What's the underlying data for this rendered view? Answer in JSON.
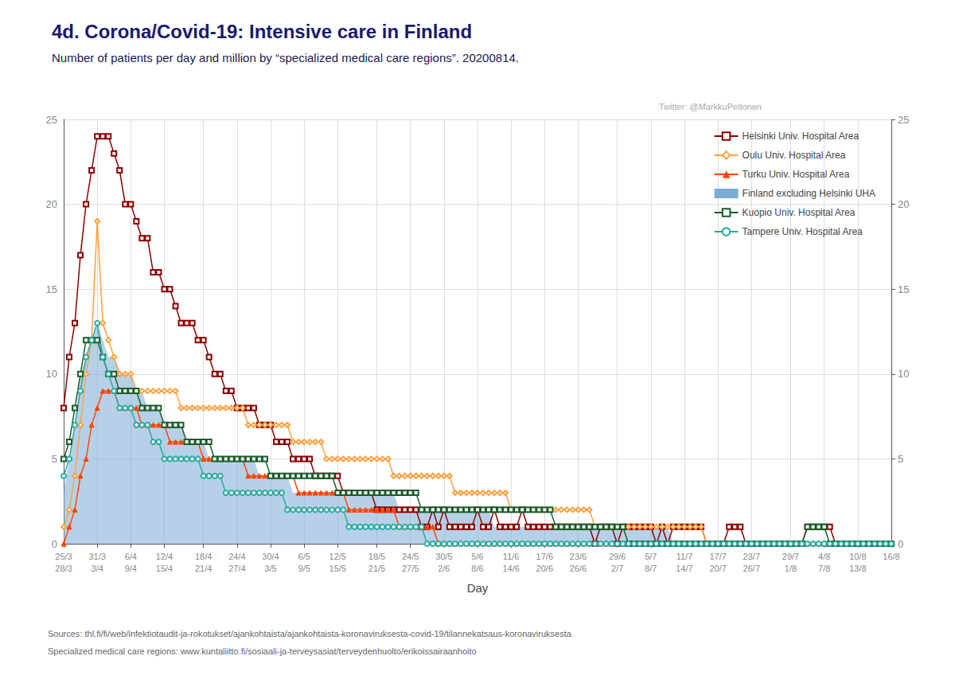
{
  "chart_data": {
    "type": "line",
    "title": "4d. Corona/Covid-19: Intensive care in Finland",
    "subtitle": "Number of patients per day and million by “specialized medical care regions”. 20200814.",
    "annotations": [
      "Twitter: @MarkkuPeltonen",
      "Sources: thl.fi/fi/web/infektiotaudit-ja-rokotukset/ajankohtaista/ajankohtaista-koronaviruksesta-covid-19/tilannekatsaus-koronaviruksesta",
      "Specialized medical care regions: www.kuntaliitto.fi/sosiaali-ja-terveysasiat/terveydenhuolto/erikoissairaanhoito"
    ],
    "xlabel": "Day",
    "categories": [
      "25/3\n28/3",
      null,
      null,
      null,
      null,
      null,
      "31/3\n3/4",
      null,
      null,
      null,
      null,
      null,
      "6/4\n9/4",
      null,
      null,
      null,
      null,
      null,
      "12/4\n15/4",
      null,
      null,
      null,
      null,
      null,
      null,
      "18/4\n21/4",
      null,
      null,
      null,
      null,
      null,
      "24/4\n27/4",
      null,
      null,
      null,
      null,
      null,
      "30/4\n3/5",
      null,
      null,
      null,
      null,
      null,
      "6/5\n9/5",
      null,
      null,
      null,
      null,
      null,
      "12/5\n15/5",
      null,
      null,
      null,
      null,
      null,
      null,
      "18/5\n21/5",
      null,
      null,
      null,
      null,
      null,
      "24/5\n27/5",
      null,
      null,
      null,
      null,
      null,
      "30/5\n2/6",
      null,
      null,
      null,
      null,
      null,
      "5/6\n8/6",
      null,
      null,
      null,
      null,
      null,
      "11/6\n14/6",
      null,
      null,
      null,
      null,
      null,
      "17/6\n20/6",
      null,
      null,
      null,
      null,
      null,
      "23/6\n26/6",
      null,
      null,
      null,
      null,
      null,
      null,
      "29/6\n2/7",
      null,
      null,
      null,
      null,
      null,
      "5/7\n8/7",
      null,
      null,
      null,
      null,
      null,
      "11/7\n14/7",
      null,
      null,
      null,
      null,
      null,
      "17/7\n20/7",
      null,
      null,
      null,
      null,
      null,
      "23/7\n26/7",
      null,
      null,
      null,
      null,
      null,
      null,
      "29/7\n1/8",
      null,
      null,
      null,
      null,
      null,
      "4/8\n7/8",
      null,
      null,
      null,
      null,
      null,
      "10/8\n13/8",
      null,
      null,
      null,
      null,
      null,
      "16/8"
    ],
    "ylim": [
      0,
      25
    ],
    "yticks": [
      0,
      5,
      10,
      15,
      20,
      25
    ],
    "y2lim": [
      0,
      25
    ],
    "y2ticks": [
      0,
      5,
      10,
      15,
      20,
      25
    ],
    "grid": true,
    "legend": "upper right",
    "series": [
      {
        "name": "Helsinki Univ. Hospital Area",
        "type": "line",
        "color": "#8B0000",
        "marker": "open square",
        "values": [
          8,
          11,
          13,
          17,
          20,
          22,
          24,
          24,
          24,
          23,
          22,
          20,
          20,
          19,
          18,
          18,
          16,
          16,
          15,
          15,
          14,
          13,
          13,
          13,
          12,
          12,
          11,
          10,
          10,
          9,
          9,
          8,
          8,
          8,
          8,
          7,
          7,
          7,
          6,
          6,
          6,
          5,
          5,
          5,
          5,
          4,
          4,
          4,
          4,
          4,
          3,
          3,
          3,
          3,
          3,
          3,
          2,
          2,
          2,
          2,
          2,
          2,
          2,
          2,
          1,
          1,
          2,
          1,
          2,
          1,
          1,
          1,
          1,
          1,
          2,
          1,
          1,
          2,
          1,
          1,
          1,
          1,
          2,
          1,
          1,
          1,
          1,
          1,
          1,
          1,
          1,
          1,
          1,
          1,
          1,
          0,
          1,
          1,
          1,
          0,
          1,
          1,
          1,
          1,
          1,
          1,
          0,
          1,
          0,
          1,
          1,
          1,
          1,
          1,
          1,
          0,
          0,
          0,
          0,
          1,
          1,
          1,
          0,
          0,
          0,
          0,
          0,
          0,
          0,
          0,
          0,
          0,
          0,
          1,
          1,
          1,
          1,
          1,
          0,
          0,
          0,
          0,
          0,
          0,
          0,
          0,
          0,
          0,
          0
        ]
      },
      {
        "name": "Oulu Univ. Hospital Area",
        "type": "line",
        "color": "#FFA040",
        "marker": "open diamond",
        "values": [
          1,
          2,
          4,
          7,
          10,
          12,
          19,
          13,
          12,
          11,
          10,
          10,
          10,
          9,
          9,
          9,
          9,
          9,
          9,
          9,
          9,
          8,
          8,
          8,
          8,
          8,
          8,
          8,
          8,
          8,
          8,
          8,
          8,
          7,
          7,
          7,
          7,
          7,
          7,
          7,
          7,
          6,
          6,
          6,
          6,
          6,
          6,
          5,
          5,
          5,
          5,
          5,
          5,
          5,
          5,
          5,
          5,
          5,
          5,
          4,
          4,
          4,
          4,
          4,
          4,
          4,
          4,
          4,
          4,
          4,
          3,
          3,
          3,
          3,
          3,
          3,
          3,
          3,
          3,
          3,
          2,
          2,
          2,
          2,
          2,
          2,
          2,
          2,
          2,
          2,
          2,
          2,
          2,
          2,
          2,
          1,
          1,
          1,
          1,
          1,
          1,
          1,
          1,
          1,
          1,
          1,
          1,
          1,
          1,
          1,
          1,
          1,
          1,
          1,
          1,
          0,
          0,
          0,
          0,
          0,
          0,
          0,
          0,
          0,
          0,
          0,
          0,
          0,
          0,
          0,
          0,
          0,
          0,
          0,
          0,
          0,
          0,
          0,
          0,
          0,
          0,
          0,
          0,
          0,
          0,
          0,
          0,
          0,
          0
        ]
      },
      {
        "name": "Turku Univ. Hospital Area",
        "type": "line",
        "color": "#FF4500",
        "marker": "triangle",
        "values": [
          0,
          1,
          2,
          4,
          5,
          7,
          8,
          9,
          9,
          9,
          8,
          8,
          8,
          8,
          7,
          7,
          7,
          7,
          7,
          6,
          6,
          6,
          6,
          6,
          6,
          5,
          5,
          5,
          5,
          5,
          5,
          5,
          5,
          4,
          4,
          4,
          4,
          4,
          4,
          4,
          4,
          4,
          3,
          3,
          3,
          3,
          3,
          3,
          3,
          3,
          3,
          2,
          2,
          2,
          2,
          2,
          2,
          2,
          2,
          2,
          1,
          1,
          1,
          1,
          1,
          1,
          1,
          0,
          0,
          0,
          0,
          0,
          0,
          0,
          0,
          0,
          0,
          0,
          0,
          0,
          0,
          0,
          0,
          0,
          0,
          0,
          0,
          0,
          0,
          0,
          0,
          0,
          0,
          0,
          0,
          0,
          0,
          0,
          0,
          0,
          0,
          0,
          0,
          0,
          0,
          0,
          0,
          0,
          0,
          0,
          0,
          0,
          0,
          0,
          0,
          0,
          0,
          0,
          0,
          0,
          0,
          0,
          0,
          0,
          0,
          0,
          0,
          0,
          0,
          0,
          0,
          0,
          0,
          0,
          0,
          0,
          0,
          0,
          0,
          0,
          0,
          0,
          0,
          0,
          0,
          0,
          0,
          0,
          0
        ]
      },
      {
        "name": "Finland excluding Helsinki UHA",
        "type": "area",
        "color": "#7aacd4",
        "values": [
          3,
          5,
          7,
          10,
          11,
          12,
          13,
          12,
          11,
          11,
          10,
          10,
          10,
          9,
          9,
          8,
          8,
          8,
          7,
          7,
          7,
          7,
          6,
          6,
          6,
          6,
          5,
          5,
          5,
          5,
          5,
          5,
          5,
          5,
          5,
          4,
          4,
          4,
          4,
          4,
          4,
          3,
          3,
          3,
          3,
          3,
          3,
          3,
          3,
          3,
          3,
          3,
          3,
          3,
          3,
          3,
          3,
          3,
          3,
          3,
          2,
          2,
          2,
          2,
          2,
          2,
          2,
          2,
          2,
          2,
          2,
          2,
          2,
          2,
          2,
          2,
          2,
          1,
          1,
          1,
          1,
          1,
          1,
          1,
          1,
          1,
          1,
          1,
          1,
          1,
          1,
          1,
          1,
          1,
          1,
          1,
          1,
          1,
          1,
          1,
          1,
          1,
          1,
          1,
          1,
          1,
          1,
          1,
          1,
          0,
          0,
          0,
          0,
          0,
          0,
          0,
          0,
          0,
          0,
          0,
          0,
          0,
          0,
          0,
          0,
          0,
          0,
          0,
          0,
          0,
          0,
          0,
          0,
          0,
          0,
          0,
          0,
          0,
          0,
          0,
          0,
          0,
          0,
          0,
          0,
          0,
          0,
          0,
          0
        ]
      },
      {
        "name": "Kuopio Univ. Hospital Area",
        "type": "line",
        "color": "#1a5c2a",
        "marker": "open square",
        "values": [
          5,
          6,
          8,
          10,
          12,
          12,
          12,
          11,
          10,
          10,
          9,
          9,
          9,
          9,
          8,
          8,
          8,
          8,
          7,
          7,
          7,
          7,
          6,
          6,
          6,
          6,
          6,
          5,
          5,
          5,
          5,
          5,
          5,
          5,
          5,
          5,
          5,
          4,
          4,
          4,
          4,
          4,
          4,
          4,
          4,
          4,
          4,
          4,
          4,
          3,
          3,
          3,
          3,
          3,
          3,
          3,
          3,
          3,
          3,
          3,
          3,
          3,
          3,
          3,
          2,
          2,
          2,
          2,
          2,
          2,
          2,
          2,
          2,
          2,
          2,
          2,
          2,
          2,
          2,
          2,
          2,
          2,
          2,
          2,
          2,
          2,
          2,
          2,
          1,
          1,
          1,
          1,
          1,
          1,
          1,
          1,
          1,
          1,
          1,
          1,
          1,
          0,
          0,
          0,
          0,
          0,
          0,
          0,
          0,
          0,
          0,
          0,
          0,
          0,
          0,
          0,
          0,
          0,
          0,
          0,
          0,
          0,
          0,
          0,
          0,
          0,
          0,
          0,
          0,
          0,
          0,
          0,
          0,
          1,
          1,
          1,
          1,
          0,
          0,
          0,
          0,
          0,
          0,
          0,
          0,
          0,
          0,
          0,
          0
        ]
      },
      {
        "name": "Tampere Univ. Hospital Area",
        "type": "line",
        "color": "#2aaaa0",
        "marker": "open circle",
        "values": [
          4,
          5,
          7,
          9,
          11,
          12,
          13,
          11,
          10,
          9,
          8,
          8,
          8,
          7,
          7,
          7,
          6,
          6,
          5,
          5,
          5,
          5,
          5,
          5,
          5,
          4,
          4,
          4,
          4,
          3,
          3,
          3,
          3,
          3,
          3,
          3,
          3,
          3,
          3,
          3,
          2,
          2,
          2,
          2,
          2,
          2,
          2,
          2,
          2,
          2,
          2,
          1,
          1,
          1,
          1,
          1,
          1,
          1,
          1,
          1,
          1,
          1,
          1,
          1,
          1,
          0,
          0,
          0,
          0,
          0,
          0,
          0,
          0,
          0,
          0,
          0,
          0,
          0,
          0,
          0,
          0,
          0,
          0,
          0,
          0,
          0,
          0,
          0,
          0,
          0,
          0,
          0,
          0,
          0,
          0,
          0,
          0,
          0,
          0,
          0,
          0,
          0,
          0,
          0,
          0,
          0,
          0,
          0,
          0,
          0,
          0,
          0,
          0,
          0,
          0,
          0,
          0,
          0,
          0,
          0,
          0,
          0,
          0,
          0,
          0,
          0,
          0,
          0,
          0,
          0,
          0,
          0,
          0,
          0,
          0,
          0,
          0,
          0,
          0,
          0,
          0,
          0,
          0,
          0,
          0,
          0,
          0,
          0,
          0
        ]
      }
    ]
  }
}
